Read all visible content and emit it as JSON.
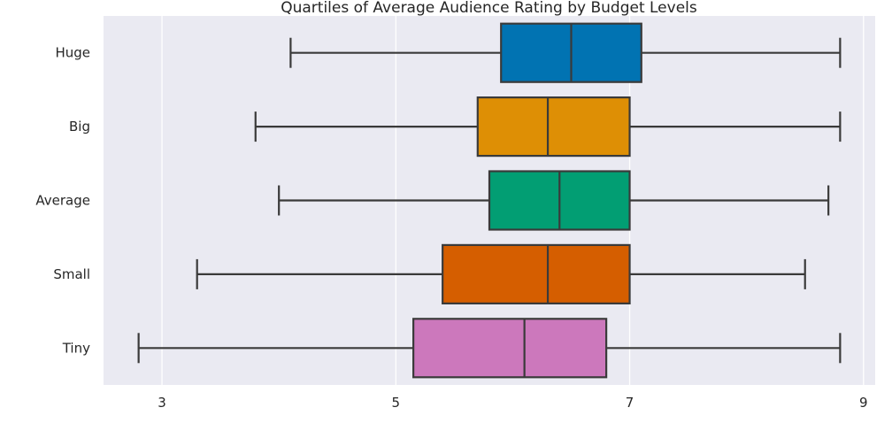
{
  "chart_data": {
    "type": "box",
    "title": "Quartiles of Average Audience Rating by Budget Levels",
    "xlabel": "",
    "ylabel": "",
    "orientation": "horizontal",
    "xlim": [
      2.5,
      9.1
    ],
    "x_ticks": [
      3,
      5,
      7,
      9
    ],
    "grid": true,
    "categories": [
      "Huge",
      "Big",
      "Average",
      "Small",
      "Tiny"
    ],
    "boxes": [
      {
        "category": "Huge",
        "min": 4.1,
        "q1": 5.9,
        "median": 6.5,
        "q3": 7.1,
        "max": 8.8,
        "color": "#0173b2"
      },
      {
        "category": "Big",
        "min": 3.8,
        "q1": 5.7,
        "median": 6.3,
        "q3": 7.0,
        "max": 8.8,
        "color": "#de8f05"
      },
      {
        "category": "Average",
        "min": 4.0,
        "q1": 5.8,
        "median": 6.4,
        "q3": 7.0,
        "max": 8.7,
        "color": "#029e73"
      },
      {
        "category": "Small",
        "min": 3.3,
        "q1": 5.4,
        "median": 6.3,
        "q3": 7.0,
        "max": 8.5,
        "color": "#d55e00"
      },
      {
        "category": "Tiny",
        "min": 2.8,
        "q1": 5.15,
        "median": 6.1,
        "q3": 6.8,
        "max": 8.8,
        "color": "#cc78bc"
      }
    ]
  }
}
